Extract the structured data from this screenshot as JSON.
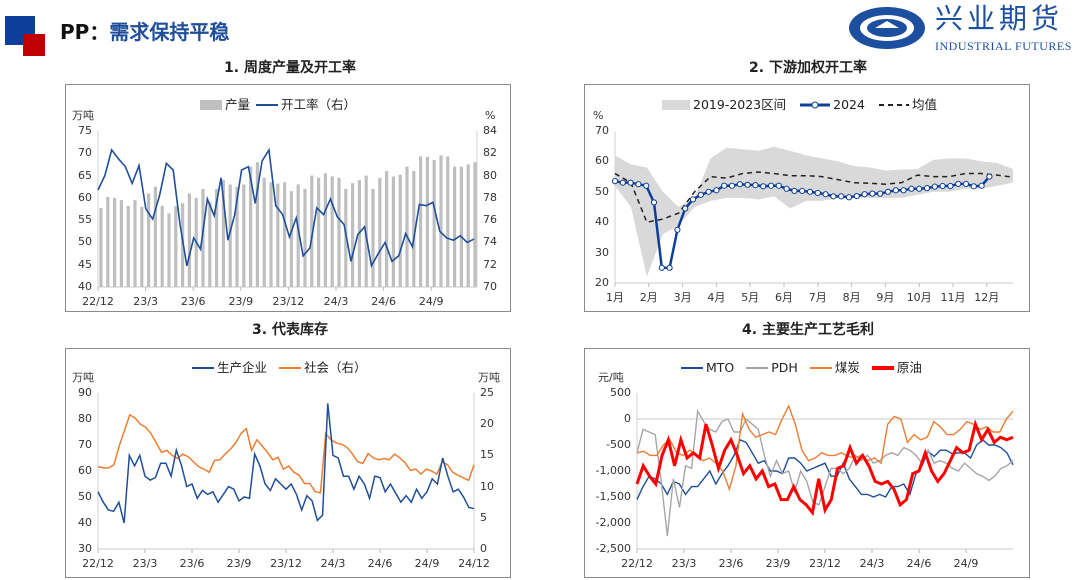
{
  "header": {
    "prefix": "PP：",
    "headline": "需求保持平稳"
  },
  "logo": {
    "cn": "兴业期货",
    "en": "INDUSTRIAL FUTURES"
  },
  "colors": {
    "blue": "#1f4e9a",
    "red": "#c00000",
    "gray": "#bfbfbf",
    "orange": "#ed7d31",
    "bright_red": "#ff0000"
  },
  "chart_data": [
    {
      "type": "bar+line",
      "title": "1. 周度产量及开工率",
      "ylabel": "万吨",
      "y2label": "%",
      "ylim": [
        40,
        75
      ],
      "y2lim": [
        70,
        84
      ],
      "yticks": [
        "75",
        "70",
        "65",
        "60",
        "55",
        "50",
        "45",
        "40"
      ],
      "y2ticks": [
        "84",
        "82",
        "80",
        "78",
        "76",
        "74",
        "72",
        "70"
      ],
      "xticks": [
        "22/12",
        "23/3",
        "23/6",
        "23/9",
        "23/12",
        "24/3",
        "24/6",
        "24/9"
      ],
      "series": [
        {
          "name": "产量",
          "type": "bar",
          "values": [
            57.7,
            60.2,
            60,
            59.5,
            58.2,
            59.5,
            58,
            61,
            62.5,
            58.2,
            56.5,
            58.2,
            58.8,
            61,
            60,
            62,
            59,
            62,
            64,
            63,
            62.5,
            63,
            67,
            68,
            64.5,
            63.5,
            63.2,
            63.5,
            61.5,
            63,
            62,
            65,
            64.5,
            65.5,
            64.8,
            64.5,
            62,
            63.3,
            64,
            65,
            62,
            64.5,
            66,
            64.8,
            65.2,
            67,
            66,
            69.3,
            69.2,
            68.5,
            69.5,
            69.3,
            67,
            67,
            67.5,
            68
          ]
        },
        {
          "name": "开工率（右）",
          "type": "line",
          "values": [
            78.7,
            80,
            82.3,
            81.5,
            80.8,
            79.3,
            80.9,
            77,
            76.1,
            78.2,
            81.1,
            80.5,
            75.6,
            71.9,
            74.4,
            73.4,
            77.9,
            76.4,
            79.8,
            74.2,
            76.5,
            80.5,
            80.8,
            77.5,
            81.3,
            82.3,
            77.3,
            76.5,
            74.5,
            76.2,
            72.8,
            73.5,
            77.1,
            76.5,
            77.9,
            76.3,
            75.6,
            72.3,
            74.7,
            75.4,
            71.9,
            73,
            74,
            72.3,
            72.8,
            74.8,
            73.6,
            77.4,
            77.3,
            77.6,
            75,
            74.4,
            74.2,
            74.6,
            74,
            74.3
          ]
        }
      ]
    },
    {
      "type": "line",
      "title": "2. 下游加权开工率",
      "ylabel": "%",
      "ylim": [
        20,
        70
      ],
      "yticks": [
        "70",
        "60",
        "50",
        "40",
        "30",
        "20"
      ],
      "xticks": [
        "1月",
        "2月",
        "3月",
        "4月",
        "5月",
        "6月",
        "7月",
        "8月",
        "9月",
        "10月",
        "11月",
        "12月"
      ],
      "series": [
        {
          "name": "2019-2023区间",
          "type": "band",
          "upper": [
            62,
            59,
            58,
            50,
            45,
            48,
            61,
            64.5,
            64,
            63.5,
            64.8,
            63.5,
            62,
            61,
            60,
            58.5,
            58,
            57,
            57.3,
            57.5,
            60.5,
            61,
            61,
            60,
            59.5,
            57.5
          ],
          "lower": [
            52,
            45,
            22,
            36,
            39,
            45,
            47,
            48,
            48,
            47.5,
            48.5,
            44.5,
            47,
            47,
            48,
            48,
            48,
            48,
            48,
            49,
            50,
            50,
            51,
            51,
            52,
            53
          ]
        },
        {
          "name": "2024",
          "values": [
            53.5,
            53,
            53,
            52.5,
            52,
            46.5,
            25,
            25,
            37.5,
            44.5,
            47.5,
            49,
            50,
            50.5,
            52,
            52,
            52.5,
            52.3,
            52.2,
            51.8,
            52,
            52,
            51,
            50.3,
            50.3,
            50,
            49.6,
            49.2,
            48.5,
            48.5,
            48.2,
            48.6,
            49.2,
            49.4,
            49.4,
            50,
            50.5,
            50.5,
            51,
            51,
            51.2,
            51.7,
            51.9,
            51.9,
            52.6,
            52.6,
            51.8,
            52,
            55
          ]
        },
        {
          "name": "均值",
          "values": [
            56,
            53,
            40,
            41,
            43,
            50,
            55,
            54.5,
            56,
            56.5,
            56,
            55.3,
            55.3,
            55,
            54,
            53,
            52.8,
            52.5,
            53,
            55.5,
            55,
            55,
            56,
            56,
            55.5,
            54.8
          ]
        }
      ]
    },
    {
      "type": "line",
      "title": "3. 代表库存",
      "ylabel": "万吨",
      "y2label": "万吨",
      "ylim": [
        30,
        90
      ],
      "y2lim": [
        0,
        25
      ],
      "yticks": [
        "90",
        "80",
        "70",
        "60",
        "50",
        "40",
        "30"
      ],
      "y2ticks": [
        "25",
        "20",
        "15",
        "10",
        "5",
        "0"
      ],
      "xticks": [
        "22/12",
        "23/3",
        "23/6",
        "23/9",
        "23/12",
        "24/3",
        "24/6",
        "24/9",
        "24/12"
      ],
      "series": [
        {
          "name": "生产企业",
          "values": [
            52,
            48,
            45,
            44.5,
            48,
            40,
            66,
            62,
            66,
            58,
            56.5,
            57.5,
            63,
            63,
            58,
            68,
            62,
            54,
            55,
            49.5,
            52.5,
            51,
            52,
            48,
            51,
            54,
            53,
            48.5,
            50,
            49.5,
            66.5,
            62,
            55,
            52.5,
            57,
            55,
            53,
            55,
            51,
            45,
            50.5,
            48.5,
            41,
            43,
            86,
            66,
            65,
            58,
            58,
            53,
            58,
            55,
            49.5,
            58,
            57.5,
            52,
            55,
            51.5,
            48,
            50.5,
            48,
            53,
            49.5,
            52,
            57,
            55,
            65,
            58,
            52,
            53,
            50,
            46,
            45.5
          ]
        },
        {
          "name": "社会（右）",
          "values": [
            13.2,
            13,
            13,
            13.5,
            16.5,
            19,
            21.5,
            21,
            20,
            19.5,
            18.5,
            17,
            15.5,
            15.8,
            15,
            14.5,
            15.2,
            14.8,
            14,
            13.2,
            12.8,
            12.3,
            14.2,
            14.3,
            15.2,
            16,
            17,
            18.5,
            19.3,
            15.8,
            17.5,
            16.5,
            15.5,
            14.3,
            14.7,
            12.8,
            13.3,
            12.3,
            11.8,
            10.5,
            10.5,
            9.2,
            9,
            18.5,
            17.5,
            17,
            16.8,
            16.3,
            15.3,
            14,
            13.7,
            15.3,
            14.6,
            14.3,
            14.5,
            14.3,
            15.2,
            14.6,
            13.8,
            12.6,
            12.8,
            12,
            12.8,
            12.5,
            12,
            14,
            13.5,
            12.3,
            11.8,
            11.4,
            11,
            13.5
          ]
        }
      ]
    },
    {
      "type": "line",
      "title": "4. 主要生产工艺毛利",
      "ylabel": "元/吨",
      "ylim": [
        -2500,
        500
      ],
      "yticks": [
        "500",
        "0",
        "-500",
        "-1,000",
        "-1,500",
        "-2,000",
        "-2,500"
      ],
      "xticks": [
        "22/12",
        "23/3",
        "23/6",
        "23/9",
        "23/12",
        "24/3",
        "24/6",
        "24/9"
      ],
      "series": [
        {
          "name": "MTO",
          "values": [
            -1550,
            -1300,
            -1100,
            -1150,
            -1250,
            -1450,
            -1200,
            -1250,
            -1450,
            -1300,
            -1300,
            -1150,
            -1000,
            -1250,
            -1050,
            -900,
            -700,
            -400,
            -450,
            -650,
            -850,
            -800,
            -1000,
            -1000,
            -1050,
            -750,
            -750,
            -850,
            -1000,
            -950,
            -900,
            -850,
            -1100,
            -1100,
            -850,
            -1150,
            -1300,
            -1450,
            -1450,
            -1500,
            -1450,
            -1500,
            -1300,
            -1300,
            -1250,
            -1450,
            -1050,
            -900,
            -620,
            -720,
            -600,
            -600,
            -670,
            -650,
            -650,
            -750,
            -500,
            -400,
            -500,
            -500,
            -550,
            -650,
            -880
          ]
        },
        {
          "name": "PDH",
          "values": [
            -650,
            -200,
            -250,
            -300,
            -1200,
            -2250,
            -1150,
            -1700,
            -900,
            -950,
            150,
            -50,
            -200,
            -250,
            -50,
            0,
            -250,
            -250,
            0,
            -100,
            -200,
            -700,
            -1100,
            -800,
            -1050,
            -1000,
            -1400,
            -1000,
            -1200,
            -1600,
            -1650,
            -1300,
            -950,
            -950,
            -1050,
            -950,
            -700,
            -800,
            -700,
            -850,
            -800,
            -700,
            -650,
            -700,
            -550,
            -600,
            -700,
            -850,
            -600,
            -850,
            -800,
            -850,
            -950,
            -1000,
            -850,
            -950,
            -1050,
            -1100,
            -1180,
            -1100,
            -950,
            -900,
            -800
          ]
        },
        {
          "name": "煤炭",
          "values": [
            -650,
            -620,
            -700,
            -700,
            -500,
            -400,
            -650,
            -700,
            -600,
            -700,
            -800,
            -750,
            -850,
            -1000,
            -1350,
            -900,
            100,
            -200,
            -350,
            -300,
            -250,
            -300,
            0,
            250,
            -100,
            -600,
            -800,
            -750,
            -650,
            -700,
            -700,
            -650,
            -720,
            -750,
            -700,
            -800,
            -750,
            -850,
            -100,
            50,
            0,
            -450,
            -300,
            -400,
            -350,
            -50,
            -150,
            -300,
            -300,
            -200,
            -50,
            -100,
            -200,
            -150,
            -250,
            -250,
            0,
            150
          ]
        },
        {
          "name": "原油",
          "values": [
            -1250,
            -900,
            -1100,
            -1250,
            -700,
            -400,
            -900,
            -400,
            -750,
            -650,
            -750,
            -100,
            -500,
            -950,
            -600,
            -400,
            -700,
            -1050,
            -900,
            -1150,
            -1000,
            -1300,
            -1250,
            -1550,
            -1550,
            -1300,
            -1550,
            -1650,
            -1800,
            -1150,
            -1750,
            -1550,
            -950,
            -900,
            -550,
            -850,
            -700,
            -900,
            -1200,
            -1250,
            -1200,
            -1350,
            -1650,
            -1550,
            -1050,
            -1000,
            -650,
            -1000,
            -1200,
            -1050,
            -800,
            -550,
            -650,
            -600,
            -100,
            -400,
            -200,
            -450,
            -350,
            -400,
            -350
          ]
        }
      ]
    }
  ]
}
